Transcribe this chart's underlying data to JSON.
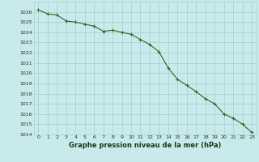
{
  "x": [
    0,
    1,
    2,
    3,
    4,
    5,
    6,
    7,
    8,
    9,
    10,
    11,
    12,
    13,
    14,
    15,
    16,
    17,
    18,
    19,
    20,
    21,
    22,
    23
  ],
  "y": [
    1026.2,
    1025.8,
    1025.7,
    1025.1,
    1025.0,
    1024.8,
    1024.6,
    1024.1,
    1024.2,
    1024.0,
    1023.8,
    1023.3,
    1022.8,
    1022.1,
    1020.5,
    1019.4,
    1018.8,
    1018.2,
    1017.5,
    1017.0,
    1016.0,
    1015.6,
    1015.0,
    1014.2
  ],
  "line_color": "#2d6a2d",
  "marker": "+",
  "marker_size": 3,
  "line_width": 0.8,
  "bg_color": "#c8eaea",
  "grid_color": "#a8cece",
  "xlabel": "Graphe pression niveau de la mer (hPa)",
  "ylim": [
    1014,
    1027
  ],
  "yticks": [
    1014,
    1015,
    1016,
    1017,
    1018,
    1019,
    1020,
    1021,
    1022,
    1023,
    1024,
    1025,
    1026
  ],
  "xticks": [
    0,
    1,
    2,
    3,
    4,
    5,
    6,
    7,
    8,
    9,
    10,
    11,
    12,
    13,
    14,
    15,
    16,
    17,
    18,
    19,
    20,
    21,
    22,
    23
  ],
  "tick_fontsize": 4.5,
  "label_fontsize": 6.0,
  "label_color": "#1a3a1a"
}
